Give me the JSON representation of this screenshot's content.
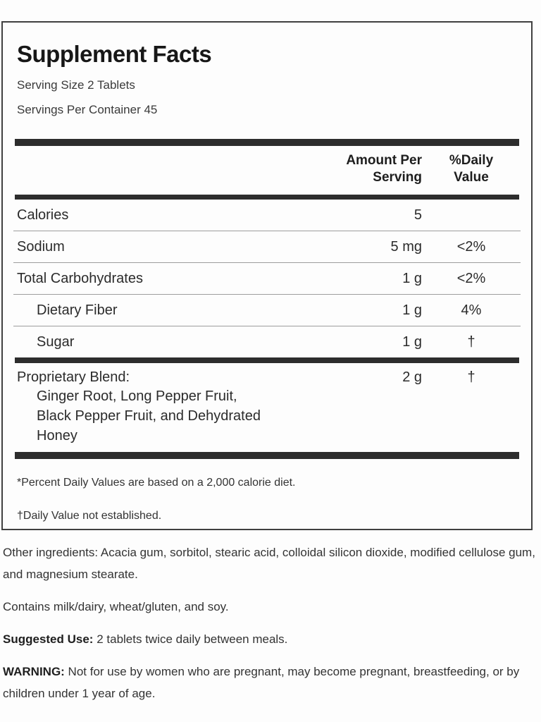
{
  "colors": {
    "bar": "#2d2d2d",
    "border": "#404040",
    "text": "#2b2b2b",
    "separator": "#9d9d9d",
    "background": "#fdfdfd"
  },
  "label": {
    "title": "Supplement Facts",
    "serving_size": "Serving Size 2 Tablets",
    "servings_per_container": "Servings Per Container 45",
    "columns": {
      "amount": "Amount Per Serving",
      "daily_value": "%Daily Value"
    },
    "rows": [
      {
        "name": "Calories",
        "amount": "5",
        "dv": "",
        "indent": false
      },
      {
        "name": "Sodium",
        "amount": "5 mg",
        "dv": "<2%",
        "indent": false
      },
      {
        "name": "Total Carbohydrates",
        "amount": "1 g",
        "dv": "<2%",
        "indent": false
      },
      {
        "name": "Dietary Fiber",
        "amount": "1 g",
        "dv": "4%",
        "indent": true
      },
      {
        "name": "Sugar",
        "amount": "1 g",
        "dv": "†",
        "indent": true
      }
    ],
    "proprietary": {
      "name": "Proprietary Blend:",
      "amount": "2 g",
      "dv": "†",
      "description_line1": "Ginger Root, Long Pepper Fruit,",
      "description_line2": "Black Pepper Fruit, and Dehydrated",
      "description_line3": "Honey"
    },
    "footnotes": {
      "percent_daily": "*Percent Daily Values are based on a 2,000 calorie diet.",
      "not_established": "†Daily Value not established."
    }
  },
  "details": {
    "other_ingredients": "Other ingredients: Acacia gum, sorbitol, stearic acid, colloidal silicon dioxide, modified cellulose gum, and magnesium stearate.",
    "contains": "Contains milk/dairy, wheat/gluten, and soy.",
    "suggested_use_label": "Suggested Use:",
    "suggested_use_text": " 2 tablets twice daily between meals.",
    "warning_label": "WARNING:",
    "warning_text": " Not for use by women who are pregnant, may become pregnant, breastfeeding, or by children under 1 year of age."
  }
}
